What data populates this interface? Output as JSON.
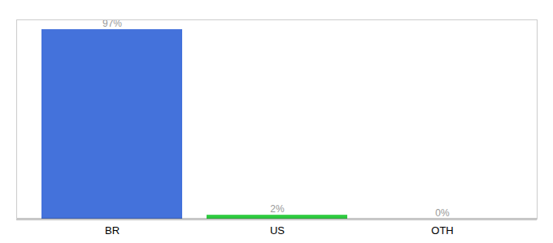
{
  "chart_data": {
    "type": "bar",
    "categories": [
      "BR",
      "US",
      "OTH"
    ],
    "values": [
      97,
      2,
      0
    ],
    "value_labels": [
      "97%",
      "2%",
      "0%"
    ],
    "colors": [
      "#4472db",
      "#2ecc40",
      "#4472db"
    ],
    "ylim": [
      0,
      102
    ],
    "data_labels": true,
    "tick_labels": "x",
    "grid": false
  }
}
